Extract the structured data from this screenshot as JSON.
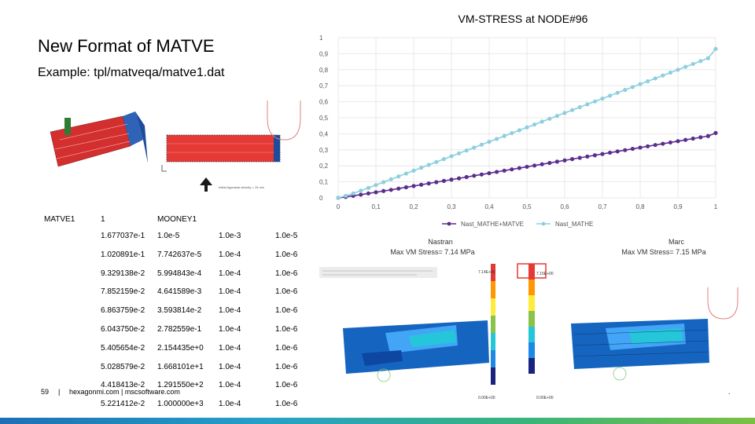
{
  "slide": {
    "title": "New Format of MATVE",
    "subtitle": "Example: tpl/matveqa/matve1.dat",
    "page_number": "59",
    "separator": "|",
    "footer_text": "hexagonmi.com | mscsoftware.com",
    "corner_dot": "."
  },
  "figure_small": {
    "annotation": "Initial Appraisal velocity = 15 m/s"
  },
  "table": {
    "header": [
      "MATVE1",
      "1",
      "MOONEY1"
    ],
    "rows": [
      [
        "1.677037e-1",
        "1.0e-5",
        "1.0e-3",
        "1.0e-5"
      ],
      [
        "1.020891e-1",
        "7.742637e-5",
        "1.0e-4",
        "1.0e-6"
      ],
      [
        "9.329138e-2",
        "5.994843e-4",
        "1.0e-4",
        "1.0e-6"
      ],
      [
        "7.852159e-2",
        "4.641589e-3",
        "1.0e-4",
        "1.0e-6"
      ],
      [
        "6.863759e-2",
        "3.593814e-2",
        "1.0e-4",
        "1.0e-6"
      ],
      [
        "6.043750e-2",
        "2.782559e-1",
        "1.0e-4",
        "1.0e-6"
      ],
      [
        "5.405654e-2",
        "2.154435e+0",
        "1.0e-4",
        "1.0e-6"
      ],
      [
        "5.028579e-2",
        "1.668101e+1",
        "1.0e-4",
        "1.0e-6"
      ],
      [
        "4.418413e-2",
        "1.291550e+2",
        "1.0e-4",
        "1.0e-6"
      ],
      [
        "5.221412e-2",
        "1.000000e+3",
        "1.0e-4",
        "1.0e-6"
      ]
    ]
  },
  "chart_data": {
    "type": "line",
    "title": "VM-STRESS at NODE#96",
    "xlim": [
      0,
      1
    ],
    "ylim": [
      0,
      1
    ],
    "x_ticks": [
      "0",
      "0,1",
      "0,2",
      "0,3",
      "0,4",
      "0,5",
      "0,6",
      "0,7",
      "0,8",
      "0,9",
      "1"
    ],
    "y_ticks": [
      "0",
      "0,1",
      "0,2",
      "0,3",
      "0,4",
      "0,5",
      "0,6",
      "0,7",
      "0,8",
      "0,9",
      "1"
    ],
    "grid": true,
    "legend_position": "bottom",
    "series": [
      {
        "name": "Nast_MATHE+MATVE",
        "color": "#5b2d8e",
        "x": [
          0,
          0.02,
          0.04,
          0.06,
          0.08,
          0.1,
          0.12,
          0.14,
          0.16,
          0.18,
          0.2,
          0.22,
          0.24,
          0.26,
          0.28,
          0.3,
          0.32,
          0.34,
          0.36,
          0.38,
          0.4,
          0.42,
          0.44,
          0.46,
          0.48,
          0.5,
          0.52,
          0.54,
          0.56,
          0.58,
          0.6,
          0.62,
          0.64,
          0.66,
          0.68,
          0.7,
          0.72,
          0.74,
          0.76,
          0.78,
          0.8,
          0.82,
          0.84,
          0.86,
          0.88,
          0.9,
          0.92,
          0.94,
          0.96,
          0.98,
          1.0
        ],
        "y": [
          0.0,
          0.006,
          0.013,
          0.02,
          0.028,
          0.035,
          0.043,
          0.05,
          0.058,
          0.066,
          0.074,
          0.082,
          0.09,
          0.098,
          0.106,
          0.114,
          0.122,
          0.13,
          0.138,
          0.146,
          0.154,
          0.162,
          0.17,
          0.178,
          0.186,
          0.194,
          0.202,
          0.21,
          0.218,
          0.226,
          0.234,
          0.242,
          0.25,
          0.258,
          0.266,
          0.274,
          0.282,
          0.29,
          0.298,
          0.306,
          0.314,
          0.322,
          0.33,
          0.338,
          0.346,
          0.354,
          0.362,
          0.37,
          0.378,
          0.386,
          0.405
        ]
      },
      {
        "name": "Nast_MATHE",
        "color": "#8ecfdf",
        "x": [
          0,
          0.02,
          0.04,
          0.06,
          0.08,
          0.1,
          0.12,
          0.14,
          0.16,
          0.18,
          0.2,
          0.22,
          0.24,
          0.26,
          0.28,
          0.3,
          0.32,
          0.34,
          0.36,
          0.38,
          0.4,
          0.42,
          0.44,
          0.46,
          0.48,
          0.5,
          0.52,
          0.54,
          0.56,
          0.58,
          0.6,
          0.62,
          0.64,
          0.66,
          0.68,
          0.7,
          0.72,
          0.74,
          0.76,
          0.78,
          0.8,
          0.82,
          0.84,
          0.86,
          0.88,
          0.9,
          0.92,
          0.94,
          0.96,
          0.98,
          1.0
        ],
        "y": [
          0.0,
          0.013,
          0.028,
          0.045,
          0.062,
          0.08,
          0.098,
          0.116,
          0.134,
          0.152,
          0.17,
          0.188,
          0.206,
          0.224,
          0.242,
          0.26,
          0.278,
          0.296,
          0.314,
          0.332,
          0.35,
          0.368,
          0.386,
          0.404,
          0.422,
          0.44,
          0.458,
          0.476,
          0.494,
          0.512,
          0.53,
          0.548,
          0.566,
          0.584,
          0.602,
          0.62,
          0.638,
          0.656,
          0.674,
          0.692,
          0.71,
          0.728,
          0.746,
          0.764,
          0.782,
          0.8,
          0.818,
          0.836,
          0.854,
          0.872,
          0.93
        ]
      }
    ]
  },
  "fem_left": {
    "title_line1": "Nastran",
    "title_line2": "Max VM Stress= 7.14 MPa",
    "scale_max": "7.14E+00",
    "scale_min": "0.00E+00"
  },
  "fem_right": {
    "title_line1": "Marc",
    "title_line2": "Max VM Stress= 7.15 MPa",
    "scale_max": "7.15E+00",
    "scale_min": "0.00E+00"
  },
  "colors": {
    "accent_red": "#e53935",
    "bottom_bar_blue": "#1d6fb5",
    "bottom_bar_green": "#7bc043"
  }
}
